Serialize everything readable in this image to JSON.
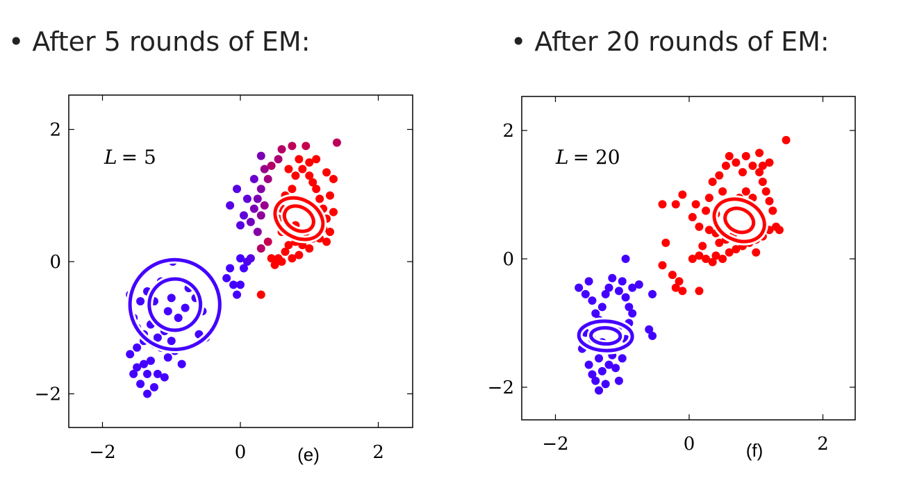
{
  "headings": {
    "left": "After 5 rounds of EM:",
    "right": "After 20 rounds of EM:"
  },
  "chart_data": [
    {
      "type": "scatter",
      "panel_label": "(e)",
      "annotation": {
        "var": "L",
        "eq": "= 5"
      },
      "xlim": [
        -2.5,
        2.5
      ],
      "ylim": [
        -2.5,
        2.5
      ],
      "xticks": [
        "−2",
        "0",
        "2"
      ],
      "xtick_values": [
        -2,
        0,
        2
      ],
      "yticks": [
        "2",
        "0",
        "−2"
      ],
      "ytick_values": [
        2,
        0,
        -2
      ],
      "components": [
        {
          "color": "#4400ff",
          "mean": [
            -0.95,
            -0.65
          ],
          "sd": [
            0.62,
            0.62
          ],
          "angle_deg": 52,
          "rings": [
            1.05,
            0.6
          ]
        },
        {
          "color": "#ff0000",
          "mean": [
            0.85,
            0.65
          ],
          "sd": [
            0.24,
            0.32
          ],
          "angle_deg": 60,
          "rings": [
            1.15,
            0.7
          ]
        }
      ],
      "points": [
        [
          -1.6,
          -1.4,
          0
        ],
        [
          -1.55,
          -1.7,
          0
        ],
        [
          -1.45,
          -1.85,
          0
        ],
        [
          -1.35,
          -2.0,
          0
        ],
        [
          -1.25,
          -1.9,
          0
        ],
        [
          -1.5,
          -1.3,
          0
        ],
        [
          -1.4,
          -1.55,
          0
        ],
        [
          -1.3,
          -1.5,
          0
        ],
        [
          -1.2,
          -1.7,
          0
        ],
        [
          -1.1,
          -1.75,
          0
        ],
        [
          -1.45,
          -0.6,
          0
        ],
        [
          -1.35,
          -0.45,
          0
        ],
        [
          -1.25,
          -0.6,
          0
        ],
        [
          -1.15,
          -0.3,
          0
        ],
        [
          -1.05,
          -0.75,
          0
        ],
        [
          -1.55,
          -0.85,
          0
        ],
        [
          -1.5,
          -1.0,
          0
        ],
        [
          -1.4,
          -1.1,
          0
        ],
        [
          -1.3,
          -0.95,
          0
        ],
        [
          -1.2,
          -1.15,
          0
        ],
        [
          -1.1,
          -1.05,
          0
        ],
        [
          -1.0,
          -1.2,
          0
        ],
        [
          -0.95,
          -1.35,
          0
        ],
        [
          -0.85,
          -1.55,
          0
        ],
        [
          -1.05,
          -1.45,
          0
        ],
        [
          -1.15,
          -1.3,
          0
        ],
        [
          -1.25,
          -1.25,
          0
        ],
        [
          -0.9,
          -0.85,
          0
        ],
        [
          -0.8,
          -0.7,
          0
        ],
        [
          -0.75,
          -0.4,
          0
        ],
        [
          -0.98,
          0.0,
          0
        ],
        [
          -0.65,
          -0.55,
          0
        ],
        [
          -0.55,
          -0.75,
          0
        ],
        [
          -0.6,
          -1.1,
          0
        ],
        [
          -0.5,
          -1.15,
          0
        ],
        [
          -1.35,
          -1.7,
          0
        ],
        [
          -1.5,
          -1.6,
          0
        ],
        [
          -1.4,
          -1.2,
          0
        ],
        [
          -1.6,
          -0.5,
          0
        ],
        [
          -1.0,
          -0.55,
          0
        ],
        [
          -0.1,
          -0.35,
          0
        ],
        [
          -0.05,
          -0.5,
          0
        ],
        [
          0.0,
          -0.35,
          0
        ],
        [
          -0.2,
          -0.25,
          0
        ],
        [
          -0.15,
          -0.1,
          0
        ],
        [
          0.05,
          -0.1,
          0
        ],
        [
          0.0,
          0.05,
          0
        ],
        [
          0.1,
          0.0,
          0.05
        ],
        [
          0.15,
          0.05,
          0.1
        ],
        [
          -0.05,
          1.1,
          0.1
        ],
        [
          -0.15,
          0.85,
          0.1
        ],
        [
          0.05,
          0.7,
          0.15
        ],
        [
          0.0,
          0.55,
          0.1
        ],
        [
          0.1,
          0.95,
          0.15
        ],
        [
          0.15,
          0.6,
          0.25
        ],
        [
          0.2,
          0.8,
          0.3
        ],
        [
          0.25,
          0.45,
          0.35
        ],
        [
          0.25,
          0.95,
          0.3
        ],
        [
          0.3,
          0.7,
          0.4
        ],
        [
          0.2,
          1.25,
          0.2
        ],
        [
          0.3,
          1.1,
          0.35
        ],
        [
          0.35,
          0.85,
          0.45
        ],
        [
          0.4,
          1.25,
          0.5
        ],
        [
          0.35,
          1.4,
          0.45
        ],
        [
          0.3,
          1.6,
          0.3
        ],
        [
          0.45,
          1.45,
          0.6
        ],
        [
          0.55,
          1.55,
          0.55
        ],
        [
          0.6,
          1.7,
          0.6
        ],
        [
          0.75,
          1.75,
          0.65
        ],
        [
          0.95,
          1.75,
          0.7
        ],
        [
          1.4,
          1.8,
          0.65
        ],
        [
          0.4,
          0.3,
          0.7
        ],
        [
          0.3,
          0.2,
          0.6
        ],
        [
          0.45,
          0.05,
          1
        ],
        [
          0.55,
          0.05,
          1
        ],
        [
          0.5,
          -0.05,
          1
        ],
        [
          0.6,
          0.0,
          1
        ],
        [
          0.65,
          0.15,
          1
        ],
        [
          0.75,
          0.05,
          1
        ],
        [
          0.85,
          0.1,
          1
        ],
        [
          0.7,
          0.25,
          1
        ],
        [
          0.8,
          0.3,
          1
        ],
        [
          0.9,
          0.25,
          1
        ],
        [
          1.0,
          0.2,
          1
        ],
        [
          1.05,
          0.35,
          1
        ],
        [
          0.6,
          0.45,
          1
        ],
        [
          0.55,
          0.65,
          1
        ],
        [
          0.6,
          0.8,
          1
        ],
        [
          0.65,
          1.0,
          1
        ],
        [
          0.75,
          1.1,
          1
        ],
        [
          0.8,
          1.3,
          1
        ],
        [
          0.9,
          1.4,
          1
        ],
        [
          1.0,
          1.3,
          1
        ],
        [
          1.05,
          1.2,
          1
        ],
        [
          1.1,
          1.1,
          1
        ],
        [
          1.15,
          0.95,
          1
        ],
        [
          1.2,
          0.8,
          1
        ],
        [
          1.25,
          0.65,
          1
        ],
        [
          1.2,
          0.5,
          1
        ],
        [
          1.15,
          0.35,
          1
        ],
        [
          1.25,
          0.3,
          1
        ],
        [
          1.3,
          0.45,
          1
        ],
        [
          1.35,
          0.75,
          1
        ],
        [
          1.3,
          1.0,
          1
        ],
        [
          1.25,
          1.35,
          1
        ],
        [
          1.0,
          1.5,
          1
        ],
        [
          1.1,
          1.55,
          1
        ],
        [
          0.85,
          1.55,
          1
        ],
        [
          0.7,
          1.4,
          1
        ],
        [
          1.35,
          1.25,
          1
        ],
        [
          0.95,
          0.45,
          1
        ],
        [
          0.8,
          0.55,
          1
        ],
        [
          0.3,
          -0.5,
          1
        ]
      ]
    },
    {
      "type": "scatter",
      "panel_label": "(f)",
      "annotation": {
        "var": "L",
        "eq": "= 20"
      },
      "xlim": [
        -2.5,
        2.5
      ],
      "ylim": [
        -2.5,
        2.5
      ],
      "xticks": [
        "−2",
        "0",
        "2"
      ],
      "xtick_values": [
        -2,
        0,
        2
      ],
      "yticks": [
        "2",
        "0",
        "−2"
      ],
      "ytick_values": [
        2,
        0,
        -2
      ],
      "components": [
        {
          "color": "#4400ff",
          "mean": [
            -1.25,
            -1.2
          ],
          "sd": [
            0.11,
            0.2
          ],
          "angle_deg": 88,
          "rings": [
            2.0,
            1.1
          ]
        },
        {
          "color": "#ff0000",
          "mean": [
            0.75,
            0.6
          ],
          "sd": [
            0.2,
            0.26
          ],
          "angle_deg": 65,
          "rings": [
            1.5,
            0.85
          ]
        }
      ],
      "points": [
        [
          -1.65,
          -0.45,
          0
        ],
        [
          -1.55,
          -0.55,
          0
        ],
        [
          -1.5,
          -0.35,
          0
        ],
        [
          -1.45,
          -0.65,
          0
        ],
        [
          -1.4,
          -0.85,
          0
        ],
        [
          -1.35,
          -0.95,
          0
        ],
        [
          -1.3,
          -0.75,
          0
        ],
        [
          -1.25,
          -0.55,
          0
        ],
        [
          -1.2,
          -0.45,
          0
        ],
        [
          -1.15,
          -0.3,
          0
        ],
        [
          -1.05,
          -0.5,
          0
        ],
        [
          -1.0,
          -0.35,
          0
        ],
        [
          -0.95,
          -0.6,
          0
        ],
        [
          -0.9,
          -0.75,
          0
        ],
        [
          -0.85,
          -0.45,
          0
        ],
        [
          -0.95,
          0.0,
          0
        ],
        [
          -0.75,
          -0.4,
          0
        ],
        [
          -0.6,
          -1.1,
          0
        ],
        [
          -0.55,
          -1.2,
          0
        ],
        [
          -0.55,
          -0.55,
          0
        ],
        [
          -1.6,
          -1.4,
          0
        ],
        [
          -1.55,
          -1.15,
          0
        ],
        [
          -1.5,
          -1.65,
          0
        ],
        [
          -1.45,
          -1.8,
          0
        ],
        [
          -1.4,
          -1.9,
          0
        ],
        [
          -1.35,
          -1.55,
          0
        ],
        [
          -1.3,
          -1.75,
          0
        ],
        [
          -1.25,
          -1.95,
          0
        ],
        [
          -1.2,
          -1.65,
          0
        ],
        [
          -1.15,
          -1.5,
          0
        ],
        [
          -1.1,
          -1.7,
          0
        ],
        [
          -1.05,
          -1.9,
          0
        ],
        [
          -1.0,
          -1.55,
          0
        ],
        [
          -0.95,
          -1.25,
          0
        ],
        [
          -0.9,
          -1.0,
          0
        ],
        [
          -0.85,
          -0.85,
          0
        ],
        [
          -1.05,
          -1.05,
          0
        ],
        [
          -1.45,
          -1.25,
          0
        ],
        [
          -1.35,
          -2.05,
          0
        ],
        [
          -1.3,
          -1.3,
          0
        ],
        [
          -0.4,
          -0.1,
          1
        ],
        [
          -0.25,
          -0.25,
          1
        ],
        [
          -0.15,
          -0.35,
          1
        ],
        [
          -0.1,
          -0.5,
          1
        ],
        [
          -0.2,
          -0.45,
          1
        ],
        [
          0.15,
          -0.5,
          1
        ],
        [
          0.05,
          0.0,
          1
        ],
        [
          0.15,
          0.05,
          1
        ],
        [
          0.25,
          0.0,
          1
        ],
        [
          0.35,
          -0.05,
          1
        ],
        [
          0.4,
          0.05,
          1
        ],
        [
          0.5,
          0.0,
          1
        ],
        [
          0.6,
          0.1,
          1
        ],
        [
          0.7,
          0.15,
          1
        ],
        [
          0.8,
          0.2,
          1
        ],
        [
          0.9,
          0.25,
          1
        ],
        [
          1.0,
          0.3,
          1
        ],
        [
          1.1,
          0.35,
          1
        ],
        [
          1.2,
          0.45,
          1
        ],
        [
          1.3,
          0.5,
          1
        ],
        [
          1.35,
          0.45,
          1
        ],
        [
          -0.4,
          0.85,
          1
        ],
        [
          -0.2,
          0.85,
          1
        ],
        [
          -0.1,
          1.0,
          1
        ],
        [
          0.05,
          0.65,
          1
        ],
        [
          0.1,
          0.85,
          1
        ],
        [
          0.15,
          0.5,
          1
        ],
        [
          0.25,
          0.75,
          1
        ],
        [
          0.3,
          0.95,
          1
        ],
        [
          0.35,
          1.2,
          1
        ],
        [
          0.45,
          1.3,
          1
        ],
        [
          0.55,
          1.45,
          1
        ],
        [
          0.6,
          1.6,
          1
        ],
        [
          0.7,
          1.5,
          1
        ],
        [
          0.8,
          1.35,
          1
        ],
        [
          0.85,
          1.6,
          1
        ],
        [
          0.95,
          1.45,
          1
        ],
        [
          1.05,
          1.35,
          1
        ],
        [
          1.1,
          1.2,
          1
        ],
        [
          1.15,
          1.05,
          1
        ],
        [
          1.2,
          0.9,
          1
        ],
        [
          1.25,
          0.75,
          1
        ],
        [
          1.2,
          1.5,
          1
        ],
        [
          1.05,
          1.65,
          1
        ],
        [
          1.45,
          1.85,
          1
        ],
        [
          0.4,
          0.4,
          1
        ],
        [
          0.45,
          0.25,
          1
        ],
        [
          0.55,
          0.3,
          1
        ],
        [
          0.65,
          0.35,
          1
        ],
        [
          0.75,
          0.95,
          1
        ],
        [
          0.85,
          1.05,
          1
        ],
        [
          0.95,
          0.95,
          1
        ],
        [
          0.5,
          1.05,
          1
        ],
        [
          0.4,
          0.7,
          1
        ],
        [
          0.3,
          0.45,
          1
        ],
        [
          1.0,
          0.1,
          1
        ],
        [
          0.2,
          0.2,
          1
        ],
        [
          -0.35,
          0.25,
          1
        ],
        [
          1.1,
          1.45,
          1
        ]
      ]
    }
  ]
}
